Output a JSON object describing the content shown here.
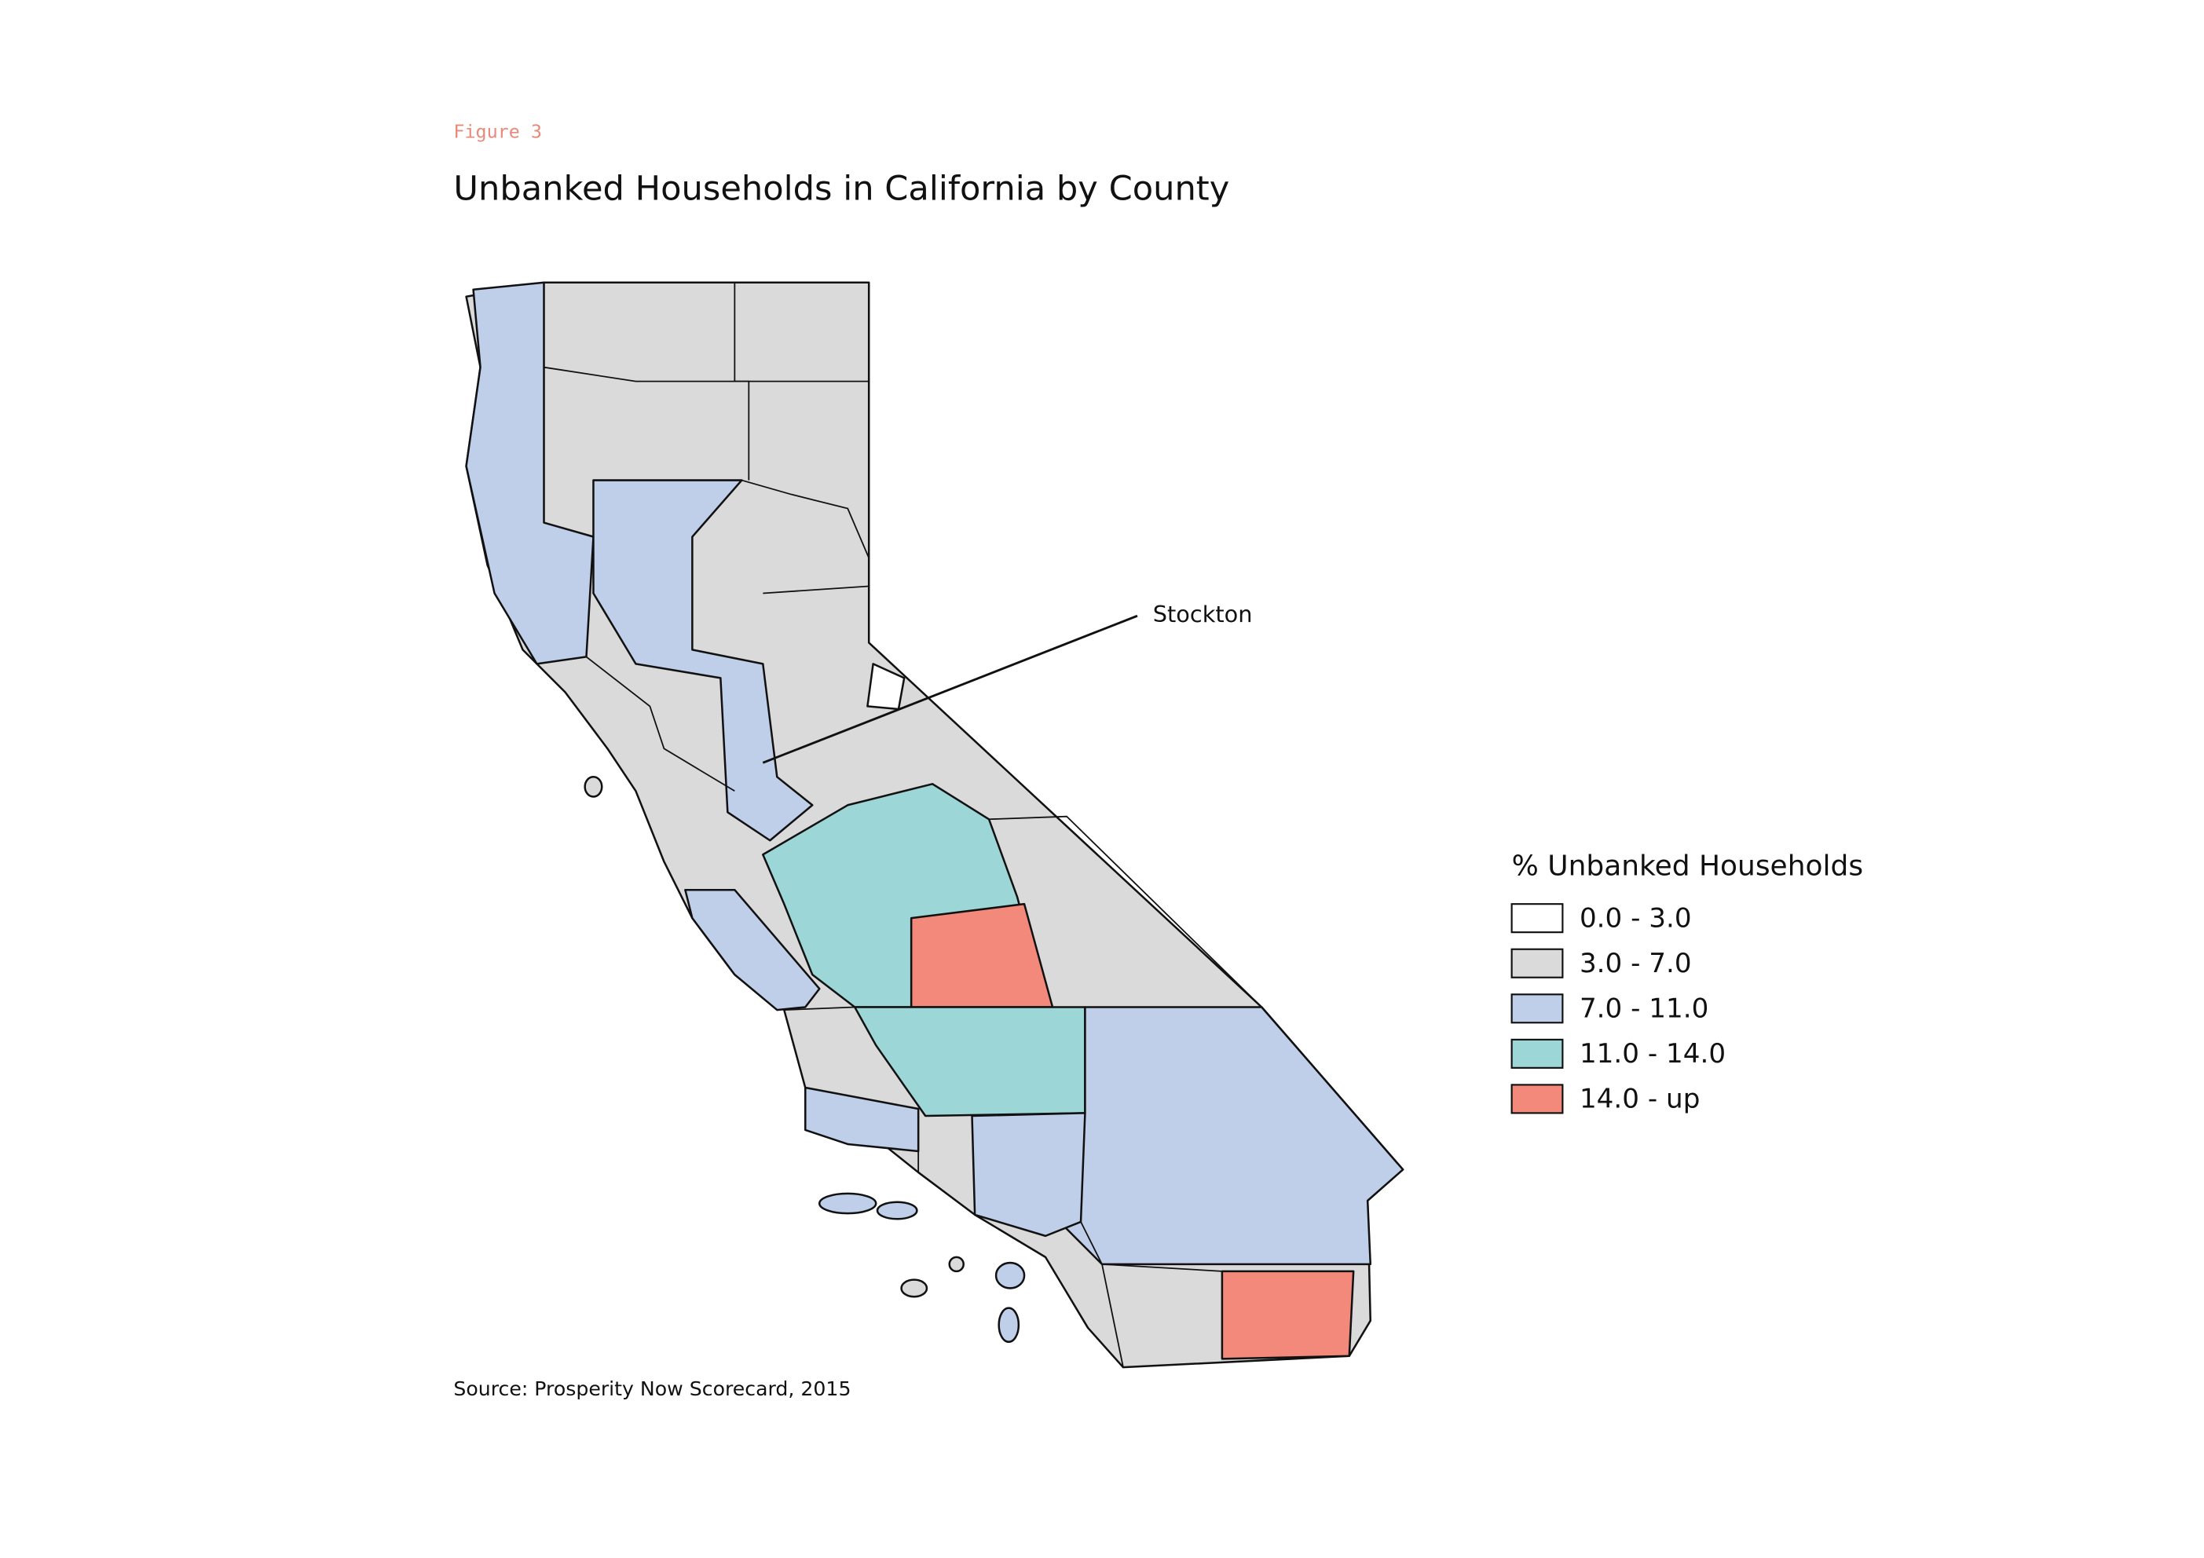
{
  "figure_label": "Figure 3",
  "title": "Unbanked Households in California by County",
  "annotation": "Stockton",
  "legend": {
    "title": "% Unbanked Households",
    "items": [
      {
        "label": "0.0 - 3.0",
        "color": "#ffffff"
      },
      {
        "label": "3.0 - 7.0",
        "color": "#d9dad9"
      },
      {
        "label": "7.0 - 11.0",
        "color": "#bfcfe9"
      },
      {
        "label": "11.0 - 14.0",
        "color": "#9dd6d6"
      },
      {
        "label": "14.0 - up",
        "color": "#f2897a"
      }
    ]
  },
  "source": "Source: Prosperity Now Scorecard, 2015"
}
